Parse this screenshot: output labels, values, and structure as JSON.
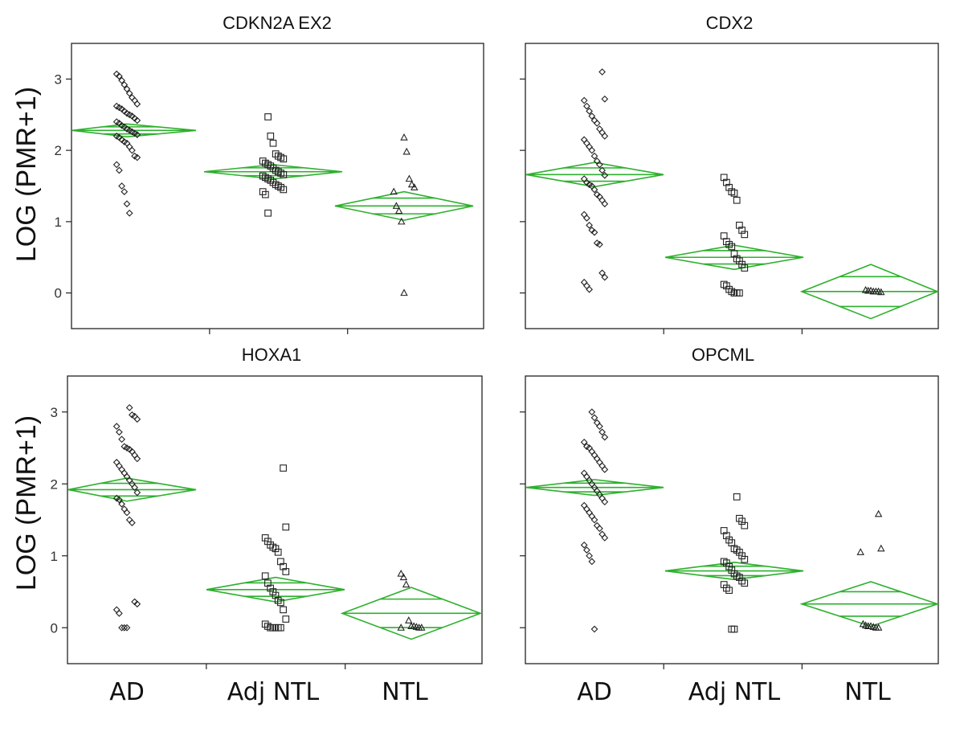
{
  "y_axis_label": "LOG (PMR+1)",
  "categories": [
    "AD",
    "Adj NTL",
    "NTL"
  ],
  "colors": {
    "diamond": "#2db02d",
    "points": "#222222"
  },
  "chart_data": [
    {
      "type": "scatter",
      "title": "CDKN2A EX2",
      "ylabel": "LOG (PMR+1)",
      "ylim": [
        -0.5,
        3.5
      ],
      "yticks": [
        0,
        1,
        2,
        3
      ],
      "categories": [
        "AD",
        "Adj NTL",
        "NTL"
      ],
      "group_means": [
        2.28,
        1.7,
        1.22
      ],
      "ci_half_width": [
        0.09,
        0.1,
        0.2
      ],
      "markers": [
        "diamond",
        "square",
        "triangle"
      ],
      "points": [
        [
          3.07,
          3.04,
          2.98,
          2.92,
          2.86,
          2.8,
          2.74,
          2.7,
          2.65,
          2.62,
          2.6,
          2.58,
          2.55,
          2.52,
          2.5,
          2.48,
          2.45,
          2.42,
          2.4,
          2.38,
          2.35,
          2.33,
          2.3,
          2.28,
          2.26,
          2.24,
          2.22,
          2.2,
          2.18,
          2.15,
          2.12,
          2.1,
          2.05,
          2.0,
          1.92,
          1.9,
          1.8,
          1.72,
          1.5,
          1.42,
          1.25,
          1.12
        ],
        [
          2.47,
          2.2,
          2.1,
          1.95,
          1.92,
          1.9,
          1.88,
          1.85,
          1.82,
          1.8,
          1.78,
          1.75,
          1.72,
          1.7,
          1.68,
          1.66,
          1.64,
          1.62,
          1.6,
          1.58,
          1.55,
          1.52,
          1.5,
          1.48,
          1.45,
          1.42,
          1.38,
          1.12
        ],
        [
          2.18,
          1.98,
          1.6,
          1.52,
          1.48,
          1.42,
          1.22,
          1.15,
          1.0,
          0.0
        ]
      ]
    },
    {
      "type": "scatter",
      "title": "CDX2",
      "ylabel": "LOG (PMR+1)",
      "ylim": [
        -0.5,
        3.5
      ],
      "yticks": [
        0,
        1,
        2,
        3
      ],
      "categories": [
        "AD",
        "Adj NTL",
        "NTL"
      ],
      "group_means": [
        1.66,
        0.5,
        0.02
      ],
      "ci_half_width": [
        0.17,
        0.17,
        0.38
      ],
      "markers": [
        "diamond",
        "square",
        "triangle"
      ],
      "points": [
        [
          3.1,
          2.72,
          2.7,
          2.62,
          2.55,
          2.48,
          2.42,
          2.38,
          2.3,
          2.25,
          2.2,
          2.15,
          2.1,
          2.05,
          2.0,
          1.92,
          1.85,
          1.8,
          1.72,
          1.65,
          1.6,
          1.55,
          1.52,
          1.5,
          1.45,
          1.38,
          1.35,
          1.3,
          1.25,
          1.1,
          1.05,
          0.95,
          0.88,
          0.85,
          0.7,
          0.68,
          0.28,
          0.22,
          0.15,
          0.1,
          0.05
        ],
        [
          1.62,
          1.55,
          1.48,
          1.42,
          1.4,
          1.3,
          0.95,
          0.88,
          0.82,
          0.8,
          0.72,
          0.68,
          0.65,
          0.55,
          0.48,
          0.45,
          0.4,
          0.35,
          0.12,
          0.1,
          0.05,
          0.02,
          0.0,
          0.0,
          0.0
        ],
        [
          0.04,
          0.03,
          0.03,
          0.02,
          0.02,
          0.02,
          0.01
        ]
      ]
    },
    {
      "type": "scatter",
      "title": "HOXA1",
      "ylabel": "LOG (PMR+1)",
      "ylim": [
        -0.5,
        3.5
      ],
      "yticks": [
        0,
        1,
        2,
        3
      ],
      "categories": [
        "AD",
        "Adj NTL",
        "NTL"
      ],
      "group_means": [
        1.92,
        0.53,
        0.2
      ],
      "ci_half_width": [
        0.16,
        0.17,
        0.36
      ],
      "markers": [
        "diamond",
        "square",
        "triangle"
      ],
      "points": [
        [
          3.06,
          2.96,
          2.94,
          2.9,
          2.8,
          2.72,
          2.62,
          2.52,
          2.5,
          2.48,
          2.45,
          2.4,
          2.35,
          2.3,
          2.25,
          2.2,
          2.15,
          2.1,
          2.05,
          2.0,
          1.95,
          1.88,
          1.8,
          1.78,
          1.72,
          1.65,
          1.6,
          1.5,
          1.46,
          0.36,
          0.33,
          0.25,
          0.2,
          0.0,
          0.0,
          0.0
        ],
        [
          2.22,
          1.4,
          1.25,
          1.2,
          1.15,
          1.12,
          1.1,
          1.05,
          0.92,
          0.85,
          0.78,
          0.72,
          0.62,
          0.55,
          0.5,
          0.45,
          0.38,
          0.35,
          0.25,
          0.12,
          0.05,
          0.02,
          0.0,
          0.0,
          0.0,
          0.0,
          0.0
        ],
        [
          0.75,
          0.7,
          0.6,
          0.1,
          0.02,
          0.02,
          0.01,
          0.0,
          0.0,
          0.0
        ]
      ]
    },
    {
      "type": "scatter",
      "title": "OPCML",
      "ylabel": "LOG (PMR+1)",
      "ylim": [
        -0.5,
        3.5
      ],
      "yticks": [
        0,
        1,
        2,
        3
      ],
      "categories": [
        "AD",
        "Adj NTL",
        "NTL"
      ],
      "group_means": [
        1.95,
        0.79,
        0.33
      ],
      "ci_half_width": [
        0.11,
        0.12,
        0.31
      ],
      "markers": [
        "diamond",
        "square",
        "triangle"
      ],
      "points": [
        [
          3.0,
          2.92,
          2.85,
          2.8,
          2.72,
          2.65,
          2.58,
          2.52,
          2.5,
          2.45,
          2.4,
          2.35,
          2.3,
          2.25,
          2.2,
          2.15,
          2.1,
          2.05,
          2.0,
          1.95,
          1.9,
          1.85,
          1.8,
          1.75,
          1.7,
          1.65,
          1.6,
          1.55,
          1.5,
          1.42,
          1.38,
          1.3,
          1.25,
          1.15,
          1.08,
          1.0,
          0.92,
          -0.02
        ],
        [
          1.82,
          1.52,
          1.48,
          1.42,
          1.35,
          1.28,
          1.22,
          1.18,
          1.1,
          1.08,
          1.05,
          1.0,
          0.95,
          0.92,
          0.9,
          0.85,
          0.8,
          0.75,
          0.72,
          0.7,
          0.65,
          0.62,
          0.6,
          0.55,
          0.52,
          -0.02,
          -0.02
        ],
        [
          1.58,
          1.1,
          1.05,
          0.05,
          0.03,
          0.02,
          0.02,
          0.01,
          0.0,
          0.0
        ]
      ]
    }
  ]
}
